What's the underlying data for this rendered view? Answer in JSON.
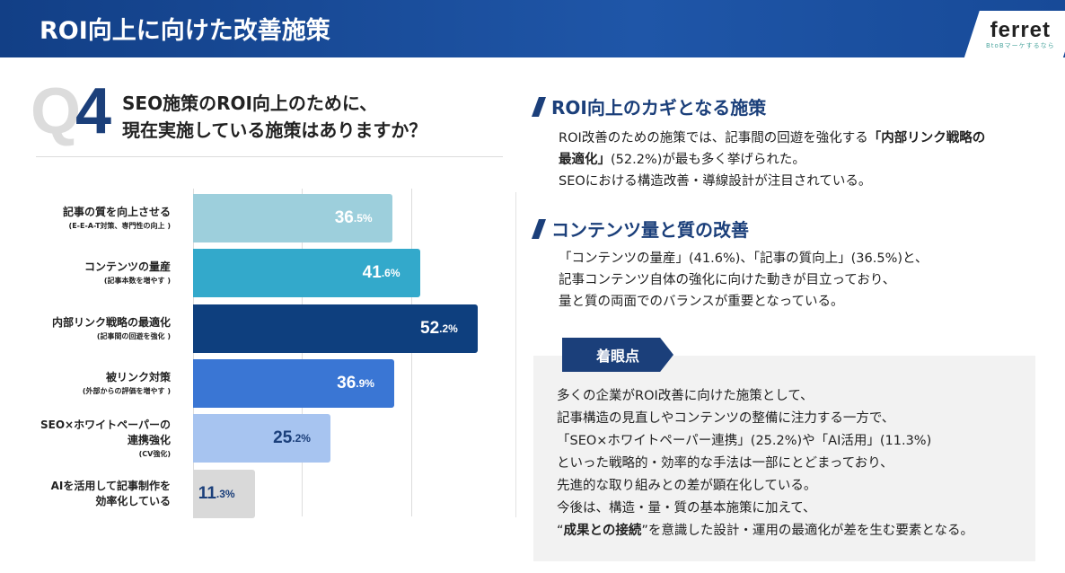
{
  "header": {
    "title": "ROI向上に向けた改善施策",
    "logo_word": "ferret",
    "logo_tagline": "BtoBマーケするなら"
  },
  "question": {
    "q": "Q",
    "num": "4",
    "line1": "SEO施策のROI向上のために、",
    "line2": "現在実施している施策はありますか？"
  },
  "chart_data": {
    "type": "bar",
    "orientation": "horizontal",
    "unit": "%",
    "xlim": [
      0,
      60
    ],
    "grid": [
      20,
      40
    ],
    "categories": [
      {
        "label": "記事の質を向上させる",
        "sub": "(E-E-A-T対策、専門性の向上 )",
        "value": 36.5,
        "int": "36",
        "dec": ".5%",
        "color": "#9dcfdc",
        "text_color": "#ffffff"
      },
      {
        "label": "コンテンツの量産",
        "sub": "(記事本数を増やす )",
        "value": 41.6,
        "int": "41",
        "dec": ".6%",
        "color": "#33a9cb",
        "text_color": "#ffffff"
      },
      {
        "label": "内部リンク戦略の最適化",
        "sub": "(記事間の回遊を強化 )",
        "value": 52.2,
        "int": "52",
        "dec": ".2%",
        "color": "#0e3f7e",
        "text_color": "#ffffff"
      },
      {
        "label": "被リンク対策",
        "sub": "(外部からの評価を増やす )",
        "value": 36.9,
        "int": "36",
        "dec": ".9%",
        "color": "#3a76d4",
        "text_color": "#ffffff"
      },
      {
        "label": "SEO×ホワイトペーパーの",
        "label2": "連携強化",
        "sub": "(CV強化)",
        "value": 25.2,
        "int": "25",
        "dec": ".2%",
        "color": "#a7c4f0",
        "text_color": "#1b3f7a"
      },
      {
        "label": "AIを活用して記事制作を",
        "label2": "効率化している",
        "sub": "",
        "value": 11.3,
        "int": "11",
        "dec": ".3%",
        "color": "#d9d9d9",
        "text_color": "#1b3f7a"
      }
    ]
  },
  "sections": [
    {
      "title": "ROI向上のカギとなる施策",
      "lines": [
        "ROI改善のための施策では、記事間の回遊を強化する",
        "「内部リンク戦略の",
        "最適化」",
        "(52.2%)が最も多く挙げられた。",
        "SEOにおける構造改善・導線設計が注目されている。"
      ]
    },
    {
      "title": "コンテンツ量と質の改善",
      "lines": [
        "「コンテンツの量産」(41.6%)、「記事の質向上」(36.5%)と、",
        "記事コンテンツ自体の強化に向けた動きが目立っており、",
        "量と質の両面でのバランスが重要となっている。"
      ]
    }
  ],
  "focus": {
    "badge": "着眼点",
    "lines": [
      "多くの企業がROI改善に向けた施策として、",
      "記事構造の見直しやコンテンツの整備に注力する一方で、",
      "「SEO×ホワイトペーパー連携」(25.2%)や「AI活用」(11.3%)",
      "といった戦略的・効率的な手法は一部にとどまっており、",
      "先進的な取り組みとの差が顕在化している。",
      "今後は、構造・量・質の基本施策に加えて、"
    ],
    "last_pre": "“",
    "last_bold": "成果との接続",
    "last_post": "”を意識した設計・運用の最適化が差を生む要素となる。"
  }
}
